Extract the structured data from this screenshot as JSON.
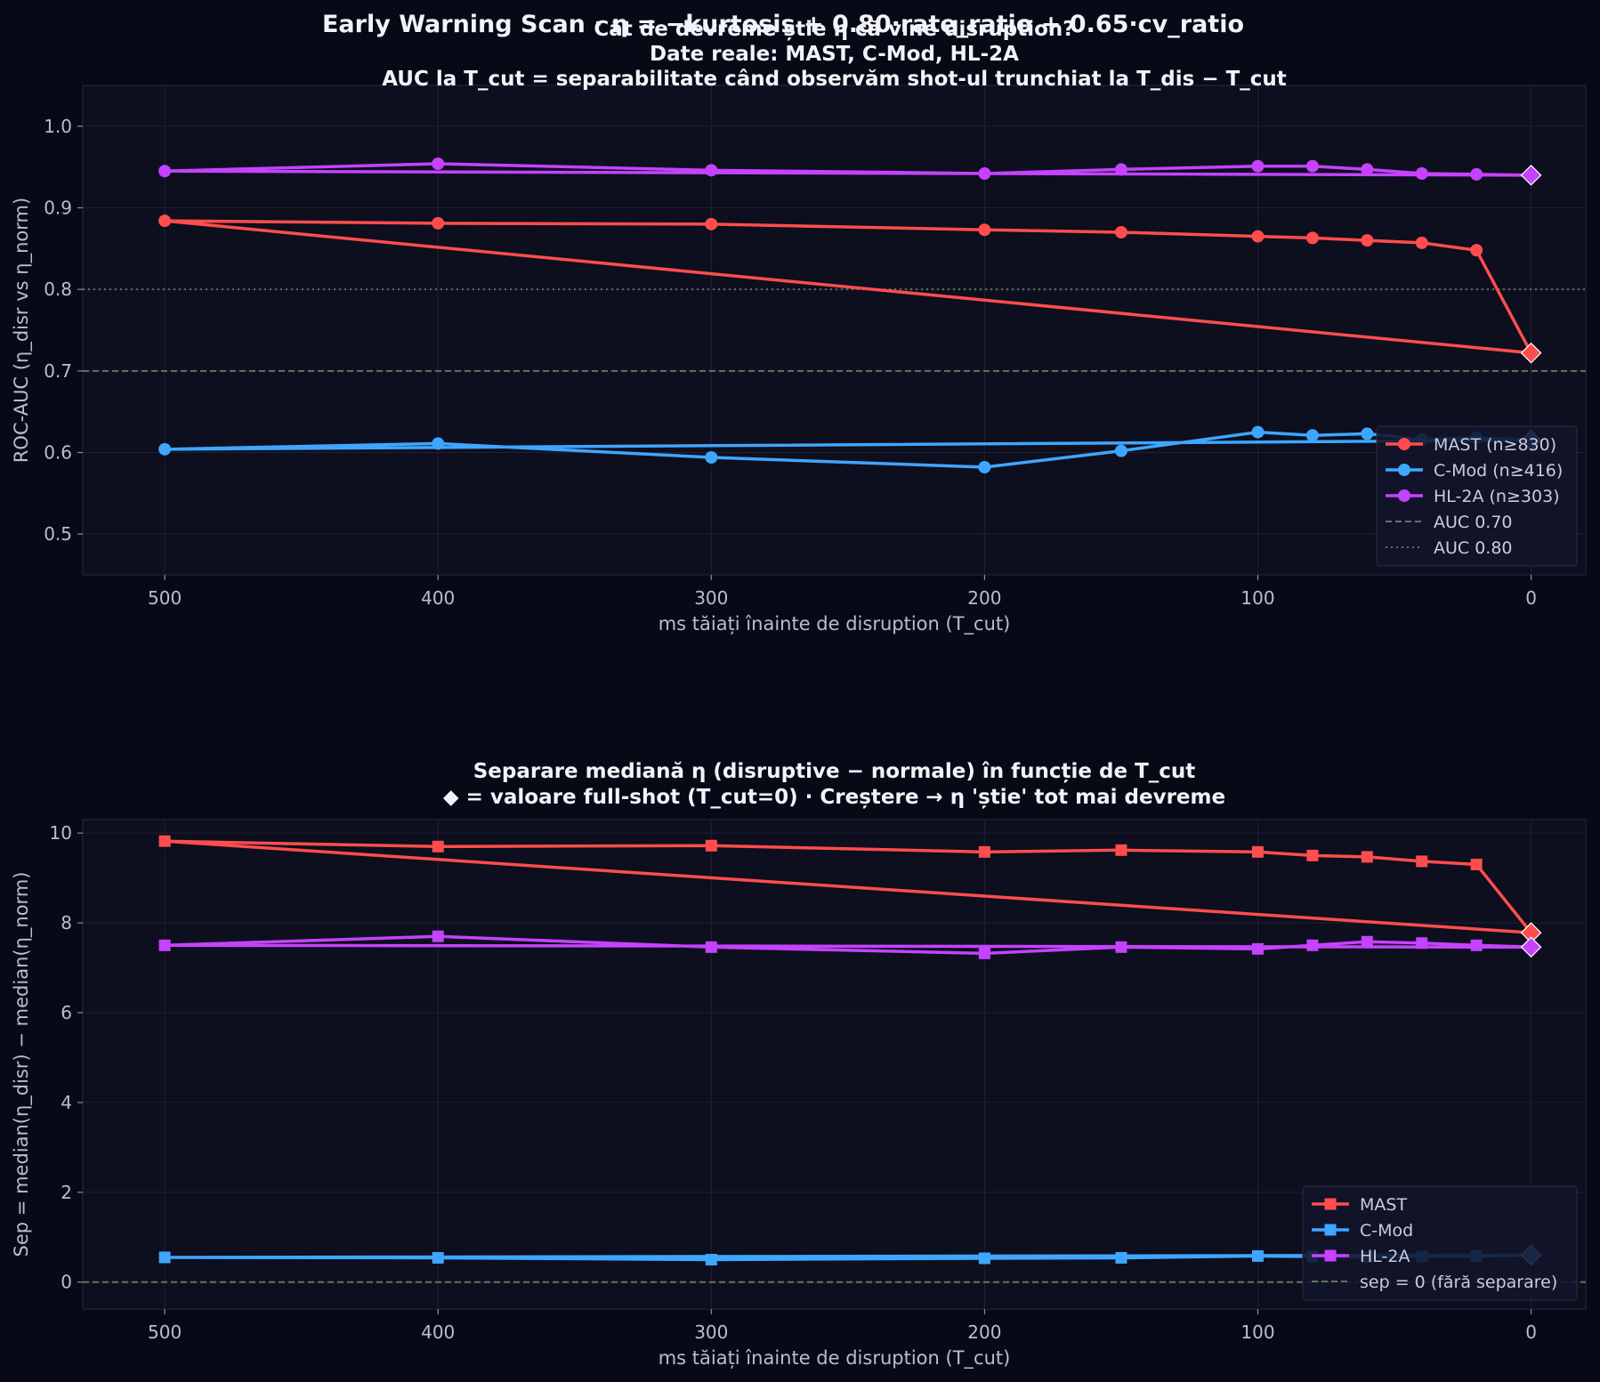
{
  "suptitle": "Early Warning Scan · η = −kurtosis + 0.80·rate_ratio + 0.65·cv_ratio",
  "colors": {
    "background": "#070a16",
    "plot_bg": "#0d0e1e",
    "MAST": "#ff4d4d",
    "C-Mod": "#3ea6ff",
    "HL-2A": "#c542ff",
    "ref_line": "#5a7a5a"
  },
  "chart_data": [
    {
      "type": "line",
      "title": "Cât de devreme știe η că vine disruption?\nDate reale: MAST, C-Mod, HL-2A\nAUC la T_cut = separabilitate când observăm shot-ul trunchiat la T_dis − T_cut",
      "title_lines": [
        "Cât de devreme știe η că vine disruption?",
        "Date reale: MAST, C-Mod, HL-2A",
        "AUC la T_cut = separabilitate când observăm shot-ul trunchiat la T_dis − T_cut"
      ],
      "xlabel": "ms tăiați înainte de disruption (T_cut)",
      "ylabel": "ROC-AUC (η_disr vs η_norm)",
      "xlim": [
        530,
        -20
      ],
      "ylim": [
        0.45,
        1.05
      ],
      "xticks": [
        500,
        400,
        300,
        200,
        100,
        0
      ],
      "yticks": [
        0.5,
        0.6,
        0.7,
        0.8,
        0.9,
        1.0
      ],
      "ytick_labels": [
        "0.5",
        "0.6",
        "0.7",
        "0.8",
        "0.9",
        "1.0"
      ],
      "marker": "circle",
      "grid": true,
      "legend_position": "bottom-right",
      "x": [
        500,
        400,
        300,
        200,
        150,
        100,
        80,
        60,
        40,
        20
      ],
      "series": [
        {
          "name": "MAST (n≥830)",
          "key": "MAST",
          "values": [
            0.884,
            0.881,
            0.88,
            0.873,
            0.87,
            0.865,
            0.863,
            0.86,
            0.857,
            0.848
          ],
          "full_shot": 0.722
        },
        {
          "name": "C-Mod (n≥416)",
          "key": "C-Mod",
          "values": [
            0.604,
            0.611,
            0.594,
            0.582,
            0.602,
            0.625,
            0.621,
            0.623,
            0.616,
            0.618
          ],
          "full_shot": 0.615
        },
        {
          "name": "HL-2A (n≥303)",
          "key": "HL-2A",
          "values": [
            0.945,
            0.954,
            0.946,
            0.942,
            0.947,
            0.951,
            0.951,
            0.947,
            0.942,
            0.941
          ],
          "full_shot": 0.94
        }
      ],
      "reference_lines": [
        {
          "label": "AUC 0.70",
          "y": 0.7,
          "style": "dashed"
        },
        {
          "label": "AUC 0.80",
          "y": 0.8,
          "style": "dotted"
        }
      ]
    },
    {
      "type": "line",
      "title": "Separare mediană η (disruptive − normale) în funcție de T_cut\n◆ = valoare full-shot (T_cut=0) · Creștere → η 'știe' tot mai devreme",
      "title_lines": [
        "Separare mediană η (disruptive − normale) în funcție de T_cut",
        "◆ = valoare full-shot (T_cut=0) · Creștere → η 'știe' tot mai devreme"
      ],
      "xlabel": "ms tăiați înainte de disruption (T_cut)",
      "ylabel": "Sep = median(η_disr) − median(η_norm)",
      "xlim": [
        530,
        -20
      ],
      "ylim": [
        -0.6,
        10.3
      ],
      "xticks": [
        500,
        400,
        300,
        200,
        100,
        0
      ],
      "yticks": [
        0,
        2,
        4,
        6,
        8,
        10
      ],
      "ytick_labels": [
        "0",
        "2",
        "4",
        "6",
        "8",
        "10"
      ],
      "marker": "square",
      "grid": true,
      "legend_position": "bottom-right",
      "x": [
        500,
        400,
        300,
        200,
        150,
        100,
        80,
        60,
        40,
        20
      ],
      "series": [
        {
          "name": "MAST",
          "key": "MAST",
          "values": [
            9.82,
            9.7,
            9.72,
            9.58,
            9.62,
            9.58,
            9.5,
            9.47,
            9.37,
            9.3
          ],
          "full_shot": 7.78
        },
        {
          "name": "C-Mod",
          "key": "C-Mod",
          "values": [
            0.55,
            0.54,
            0.5,
            0.53,
            0.54,
            0.58,
            0.57,
            0.56,
            0.57,
            0.58
          ],
          "full_shot": 0.6
        },
        {
          "name": "HL-2A",
          "key": "HL-2A",
          "values": [
            7.5,
            7.7,
            7.46,
            7.32,
            7.46,
            7.42,
            7.5,
            7.58,
            7.55,
            7.5
          ],
          "full_shot": 7.46
        }
      ],
      "reference_lines": [
        {
          "label": "sep = 0 (fără separare)",
          "y": 0,
          "style": "dashed"
        }
      ]
    }
  ]
}
